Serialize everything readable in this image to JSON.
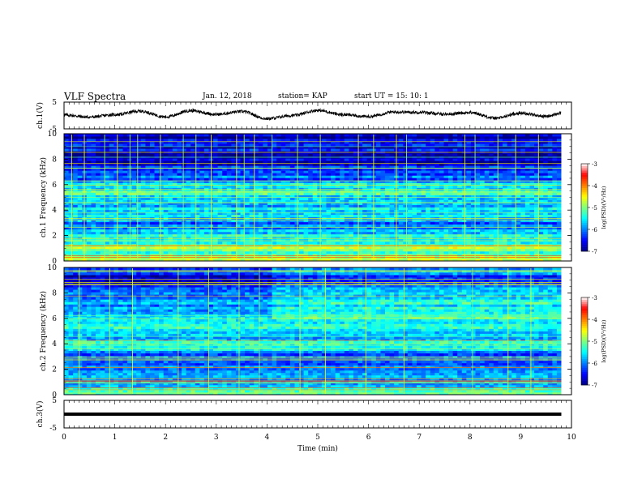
{
  "header": {
    "title": "VLF Spectra",
    "date": "Jan. 12, 2018",
    "station": "station= KAP",
    "start_time": "start UT = 15: 10: 1"
  },
  "chart_data": [
    {
      "type": "line",
      "panel": "ch1-waveform",
      "ylabel": "ch.1(V)",
      "ylim": [
        -5,
        5
      ],
      "yticks": [
        "5",
        "-5"
      ],
      "xlim": [
        0,
        10
      ],
      "x_end": 9.8,
      "description_points_x": [
        0,
        0.5,
        1,
        1.5,
        2,
        2.5,
        3,
        3.5,
        4,
        4.5,
        5,
        5.5,
        6,
        6.5,
        7,
        7.5,
        8,
        8.5,
        9,
        9.5,
        9.8
      ],
      "values": [
        0.2,
        -0.6,
        0.3,
        1.6,
        -0.5,
        1.8,
        0.4,
        1.5,
        -1.2,
        0.0,
        1.9,
        0.3,
        -0.4,
        1.3,
        1.2,
        0.5,
        1.1,
        -1.0,
        0.9,
        -0.3,
        0.8
      ]
    },
    {
      "type": "heatmap",
      "panel": "ch1-spectrogram",
      "ylabel": "ch.1 Frequency (kHz)",
      "ylim": [
        0,
        10
      ],
      "yticks": [
        "0",
        "2",
        "4",
        "6",
        "8",
        "10"
      ],
      "xlim": [
        0,
        10
      ],
      "x_end": 9.8,
      "colorbar": {
        "label": "log(PSD)(V²/Hz)",
        "ticks": [
          "-3",
          "-4",
          "-5",
          "-6",
          "-7"
        ],
        "range": [
          -7,
          -3
        ]
      },
      "band_frequency_kHz": [
        0,
        0.5,
        1,
        1.5,
        2,
        2.5,
        3,
        3.5,
        4,
        4.5,
        5,
        5.5,
        6,
        6.5,
        7,
        7.5,
        8,
        8.5,
        9,
        9.5,
        10
      ],
      "band_level": [
        -4.5,
        -4.8,
        -4.6,
        -5.2,
        -5.0,
        -5.4,
        -5.8,
        -5.6,
        -5.4,
        -5.9,
        -5.1,
        -5.0,
        -5.5,
        -5.9,
        -6.3,
        -6.5,
        -6.4,
        -6.5,
        -6.6,
        -6.7,
        -6.7
      ],
      "sferic_times_min": [
        0.15,
        0.4,
        0.8,
        1.05,
        1.3,
        1.45,
        1.9,
        2.35,
        2.6,
        2.9,
        3.4,
        3.55,
        3.75,
        4.1,
        4.6,
        5.05,
        5.8,
        6.1,
        6.55,
        6.75,
        7.9,
        8.1,
        8.55,
        8.9,
        9.35
      ]
    },
    {
      "type": "heatmap",
      "panel": "ch2-spectrogram",
      "ylabel": "ch.2 Frequency (kHz)",
      "ylim": [
        0,
        10
      ],
      "yticks": [
        "0",
        "2",
        "4",
        "6",
        "8",
        "10"
      ],
      "xlim": [
        0,
        10
      ],
      "x_end": 9.8,
      "colorbar": {
        "label": "log(PSD)(V²/Hz)",
        "ticks": [
          "-3",
          "-4",
          "-5",
          "-6",
          "-7"
        ],
        "range": [
          -7,
          -3
        ]
      },
      "band_frequency_kHz": [
        0,
        0.5,
        1,
        1.5,
        2,
        2.5,
        3,
        3.5,
        4,
        4.5,
        5,
        5.5,
        6,
        6.5,
        7,
        7.5,
        8,
        8.5,
        9,
        9.5,
        10
      ],
      "band_level": [
        -5.0,
        -5.3,
        -5.5,
        -5.7,
        -5.9,
        -6.1,
        -6.2,
        -5.6,
        -5.3,
        -5.6,
        -5.2,
        -5.0,
        -5.3,
        -5.6,
        -5.8,
        -5.7,
        -6.0,
        -6.2,
        -6.3,
        -6.4,
        -6.5
      ],
      "sferic_times_min": [
        0.3,
        0.9,
        1.35,
        2.25,
        2.85,
        3.45,
        3.85,
        4.65,
        5.15,
        5.95,
        6.7,
        8.05,
        8.75,
        9.2
      ]
    },
    {
      "type": "line",
      "panel": "ch3-waveform",
      "ylabel": "ch.3(V)",
      "ylim": [
        -5,
        5
      ],
      "yticks": [
        "5",
        "-5"
      ],
      "xlim": [
        0,
        10
      ],
      "x_end": 9.8,
      "constant_value": 0,
      "xlabel": "Time (min)",
      "xticks": [
        "0",
        "1",
        "2",
        "3",
        "4",
        "5",
        "6",
        "7",
        "8",
        "9",
        "10"
      ]
    }
  ],
  "colors": {
    "colormap": [
      "#00007f",
      "#0000ff",
      "#007fff",
      "#00ffff",
      "#7fff7f",
      "#ffff00",
      "#ff7f00",
      "#ff0000",
      "#ffffff"
    ],
    "axis": "#000000"
  }
}
